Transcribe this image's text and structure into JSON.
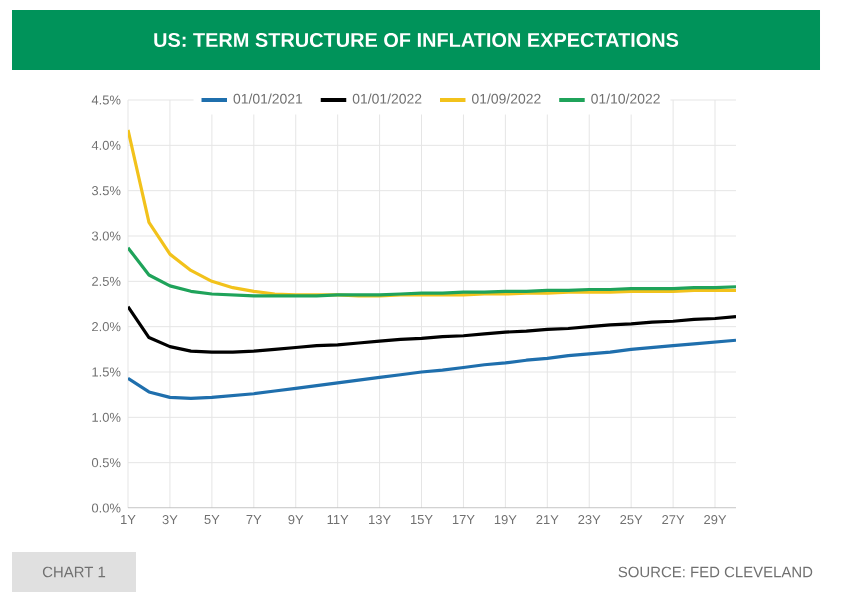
{
  "chart_data": {
    "type": "line",
    "title": "US: TERM STRUCTURE OF INFLATION EXPECTATIONS",
    "categories": [
      "1Y",
      null,
      "3Y",
      null,
      "5Y",
      null,
      "7Y",
      null,
      "9Y",
      null,
      "11Y",
      null,
      "13Y",
      null,
      "15Y",
      null,
      "17Y",
      null,
      "19Y",
      null,
      "21Y",
      null,
      "23Y",
      null,
      "25Y",
      null,
      "27Y",
      null,
      "29Y",
      null
    ],
    "series": [
      {
        "name": "01/01/2021",
        "color": "#1f6fad",
        "values": [
          1.43,
          1.28,
          1.22,
          1.21,
          1.22,
          1.24,
          1.26,
          1.29,
          1.32,
          1.35,
          1.38,
          1.41,
          1.44,
          1.47,
          1.5,
          1.52,
          1.55,
          1.58,
          1.6,
          1.63,
          1.65,
          1.68,
          1.7,
          1.72,
          1.75,
          1.77,
          1.79,
          1.81,
          1.83,
          1.85
        ]
      },
      {
        "name": "01/01/2022",
        "color": "#000000",
        "values": [
          2.22,
          1.88,
          1.78,
          1.73,
          1.72,
          1.72,
          1.73,
          1.75,
          1.77,
          1.79,
          1.8,
          1.82,
          1.84,
          1.86,
          1.87,
          1.89,
          1.9,
          1.92,
          1.94,
          1.95,
          1.97,
          1.98,
          2.0,
          2.02,
          2.03,
          2.05,
          2.06,
          2.08,
          2.09,
          2.11
        ]
      },
      {
        "name": "01/09/2022",
        "color": "#f2c21b",
        "values": [
          4.17,
          3.15,
          2.8,
          2.62,
          2.5,
          2.43,
          2.39,
          2.36,
          2.35,
          2.35,
          2.35,
          2.34,
          2.34,
          2.35,
          2.35,
          2.35,
          2.35,
          2.36,
          2.36,
          2.37,
          2.37,
          2.38,
          2.38,
          2.38,
          2.39,
          2.39,
          2.39,
          2.4,
          2.4,
          2.4
        ]
      },
      {
        "name": "01/10/2022",
        "color": "#1fa35a",
        "values": [
          2.87,
          2.57,
          2.45,
          2.39,
          2.36,
          2.35,
          2.34,
          2.34,
          2.34,
          2.34,
          2.35,
          2.35,
          2.35,
          2.36,
          2.37,
          2.37,
          2.38,
          2.38,
          2.39,
          2.39,
          2.4,
          2.4,
          2.41,
          2.41,
          2.42,
          2.42,
          2.42,
          2.43,
          2.43,
          2.44
        ]
      }
    ],
    "ylim": [
      0,
      4.5
    ],
    "yticks": [
      {
        "value": 0,
        "label": "0.0%"
      },
      {
        "value": 0.5,
        "label": "0.5%"
      },
      {
        "value": 1,
        "label": "1.0%"
      },
      {
        "value": 1.5,
        "label": "1.5%"
      },
      {
        "value": 2,
        "label": "2.0%"
      },
      {
        "value": 2.5,
        "label": "2.5%"
      },
      {
        "value": 3,
        "label": "3.0%"
      },
      {
        "value": 3.5,
        "label": "3.5%"
      },
      {
        "value": 4,
        "label": "4.0%"
      },
      {
        "value": 4.5,
        "label": "4.5%"
      }
    ],
    "grid": true,
    "legend": "top",
    "annotations": [
      "CHART 1",
      "SOURCE: FED CLEVELAND"
    ]
  }
}
